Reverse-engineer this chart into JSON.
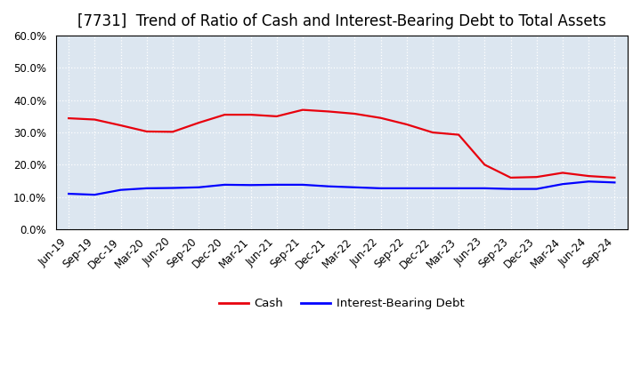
{
  "title": "[7731]  Trend of Ratio of Cash and Interest-Bearing Debt to Total Assets",
  "labels": [
    "Jun-19",
    "Sep-19",
    "Dec-19",
    "Mar-20",
    "Jun-20",
    "Sep-20",
    "Dec-20",
    "Mar-21",
    "Jun-21",
    "Sep-21",
    "Dec-21",
    "Mar-22",
    "Jun-22",
    "Sep-22",
    "Dec-22",
    "Mar-23",
    "Jun-23",
    "Sep-23",
    "Dec-23",
    "Mar-24",
    "Jun-24",
    "Sep-24"
  ],
  "cash": [
    0.344,
    0.34,
    0.322,
    0.303,
    0.302,
    0.33,
    0.355,
    0.355,
    0.35,
    0.37,
    0.365,
    0.358,
    0.345,
    0.325,
    0.3,
    0.293,
    0.2,
    0.16,
    0.162,
    0.175,
    0.165,
    0.16
  ],
  "debt": [
    0.11,
    0.107,
    0.122,
    0.127,
    0.128,
    0.13,
    0.138,
    0.137,
    0.138,
    0.138,
    0.133,
    0.13,
    0.127,
    0.127,
    0.127,
    0.127,
    0.127,
    0.125,
    0.125,
    0.14,
    0.148,
    0.145
  ],
  "cash_color": "#e8000d",
  "debt_color": "#0000ff",
  "plot_bg_color": "#dce6f0",
  "figure_bg_color": "#ffffff",
  "grid_color": "#ffffff",
  "spine_color": "#000000",
  "ylim": [
    0.0,
    0.6
  ],
  "yticks": [
    0.0,
    0.1,
    0.2,
    0.3,
    0.4,
    0.5,
    0.6
  ],
  "legend_cash": "Cash",
  "legend_debt": "Interest-Bearing Debt",
  "title_fontsize": 12,
  "axis_fontsize": 8.5,
  "legend_fontsize": 9.5,
  "line_width": 1.6
}
